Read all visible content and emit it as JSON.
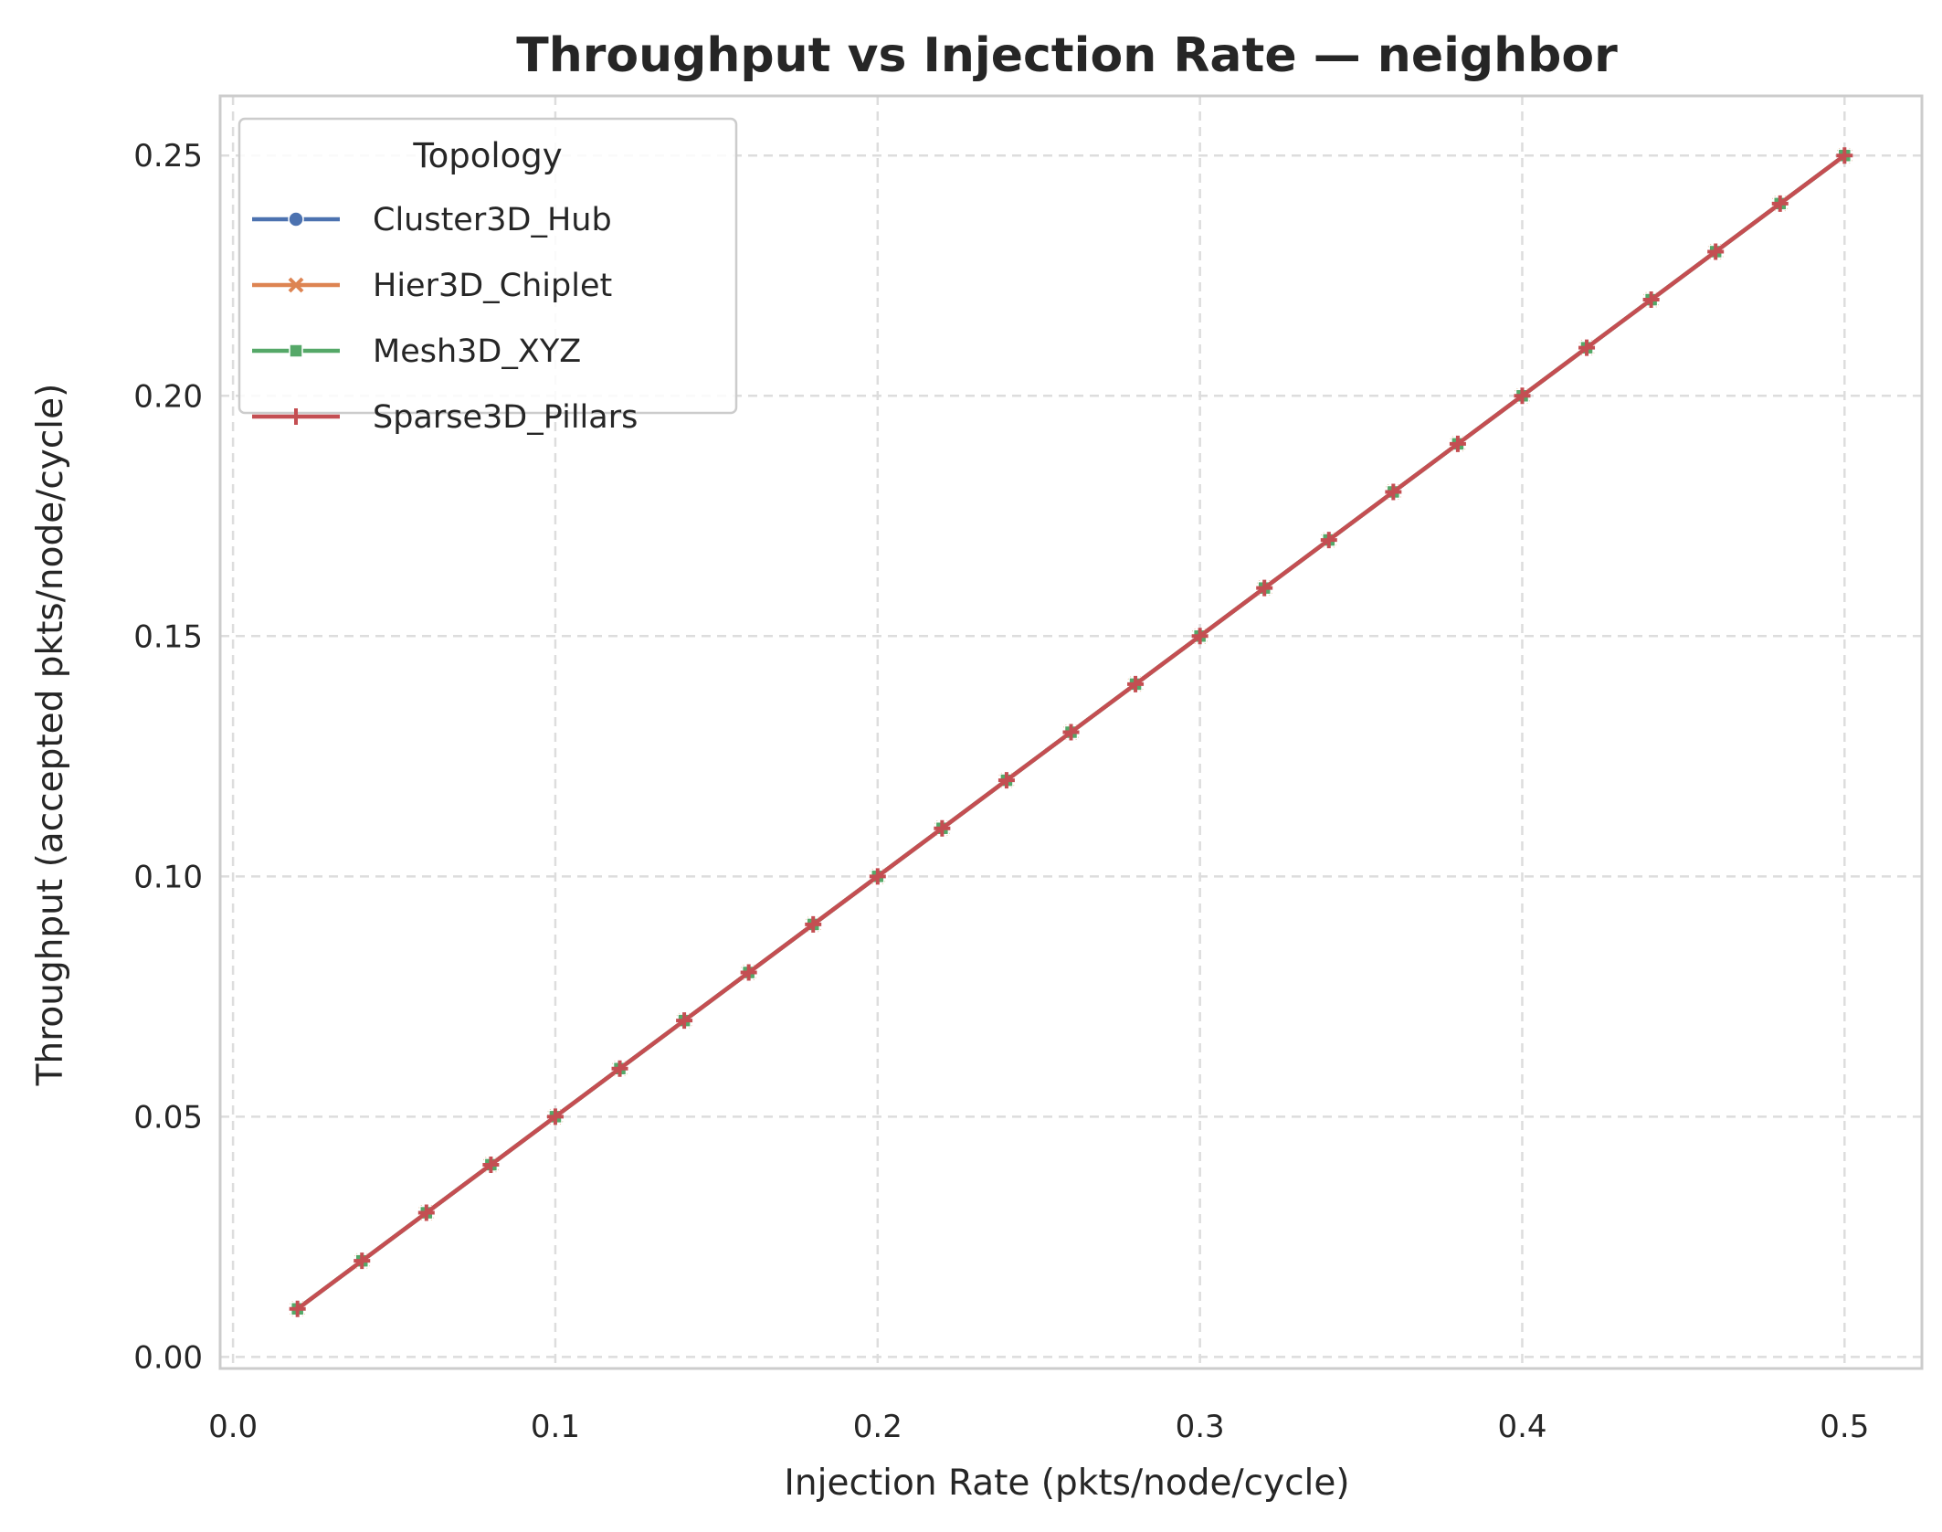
{
  "chart_data": {
    "type": "line",
    "title": "Throughput vs Injection Rate — neighbor",
    "xlabel": "Injection Rate (pkts/node/cycle)",
    "ylabel": "Throughput (accepted pkts/node/cycle)",
    "xlim": [
      -0.004,
      0.524
    ],
    "ylim": [
      -0.0024,
      0.2624
    ],
    "x_ticks": [
      0.0,
      0.1,
      0.2,
      0.3,
      0.4,
      0.5
    ],
    "x_tick_labels": [
      "0.0",
      "0.1",
      "0.2",
      "0.3",
      "0.4",
      "0.5"
    ],
    "y_ticks": [
      0.0,
      0.05,
      0.1,
      0.15,
      0.2,
      0.25
    ],
    "y_tick_labels": [
      "0.00",
      "0.05",
      "0.10",
      "0.15",
      "0.20",
      "0.25"
    ],
    "grid": true,
    "legend": {
      "title": "Topology",
      "placement": "upper-left"
    },
    "x": [
      0.02,
      0.04,
      0.06,
      0.08,
      0.1,
      0.12,
      0.14,
      0.16,
      0.18,
      0.2,
      0.22,
      0.24,
      0.26,
      0.28,
      0.3,
      0.32,
      0.34,
      0.36,
      0.38,
      0.4,
      0.42,
      0.44,
      0.46,
      0.48,
      0.5
    ],
    "series": [
      {
        "name": "Cluster3D_Hub",
        "color": "#4c72b0",
        "marker": "circle",
        "values": [
          0.01,
          0.02,
          0.03,
          0.04,
          0.05,
          0.06,
          0.07,
          0.08,
          0.09,
          0.1,
          0.11,
          0.12,
          0.13,
          0.14,
          0.15,
          0.16,
          0.17,
          0.18,
          0.19,
          0.2,
          0.21,
          0.22,
          0.23,
          0.24,
          0.25
        ]
      },
      {
        "name": "Hier3D_Chiplet",
        "color": "#dd8452",
        "marker": "x",
        "values": [
          0.01,
          0.02,
          0.03,
          0.04,
          0.05,
          0.06,
          0.07,
          0.08,
          0.09,
          0.1,
          0.11,
          0.12,
          0.13,
          0.14,
          0.15,
          0.16,
          0.17,
          0.18,
          0.19,
          0.2,
          0.21,
          0.22,
          0.23,
          0.24,
          0.25
        ]
      },
      {
        "name": "Mesh3D_XYZ",
        "color": "#55a868",
        "marker": "square",
        "values": [
          0.01,
          0.02,
          0.03,
          0.04,
          0.05,
          0.06,
          0.07,
          0.08,
          0.09,
          0.1,
          0.11,
          0.12,
          0.13,
          0.14,
          0.15,
          0.16,
          0.17,
          0.18,
          0.19,
          0.2,
          0.21,
          0.22,
          0.23,
          0.24,
          0.25
        ]
      },
      {
        "name": "Sparse3D_Pillars",
        "color": "#c44e52",
        "marker": "plus",
        "values": [
          0.01,
          0.02,
          0.03,
          0.04,
          0.05,
          0.06,
          0.07,
          0.08,
          0.09,
          0.1,
          0.11,
          0.12,
          0.13,
          0.14,
          0.15,
          0.16,
          0.17,
          0.18,
          0.19,
          0.2,
          0.21,
          0.22,
          0.23,
          0.24,
          0.25
        ]
      }
    ]
  }
}
